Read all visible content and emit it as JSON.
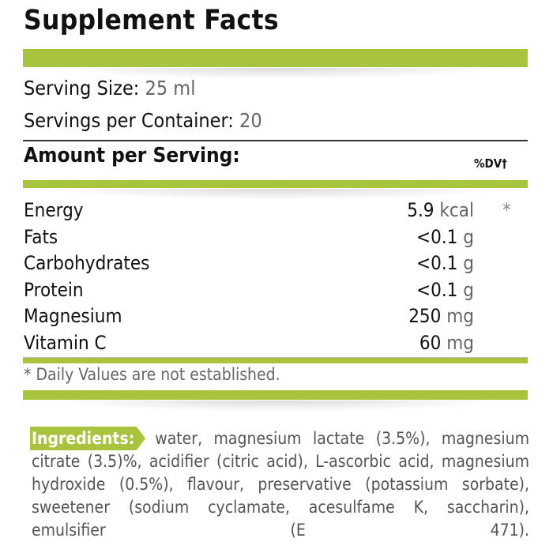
{
  "title": "Supplement Facts",
  "serving_size": {
    "label": "Serving Size:",
    "value": "25 ml"
  },
  "servings_per_container": {
    "label": "Servings per Container:",
    "value": "20"
  },
  "amount_header": "Amount per Serving:",
  "dv_header": "%DV†",
  "nutrients": [
    {
      "name": "Energy",
      "amount": "5.9",
      "unit": "kcal",
      "dv": "*"
    },
    {
      "name": "Fats",
      "amount": "<0.1",
      "unit": "g",
      "dv": ""
    },
    {
      "name": "Carbohydrates",
      "amount": "<0.1",
      "unit": "g",
      "dv": ""
    },
    {
      "name": "Protein",
      "amount": "<0.1",
      "unit": "g",
      "dv": ""
    },
    {
      "name": "Magnesium",
      "amount": "250",
      "unit": "mg",
      "dv": ""
    },
    {
      "name": "Vitamin C",
      "amount": "60",
      "unit": "mg",
      "dv": ""
    }
  ],
  "footnote": "* Daily Values are not established.",
  "ingredients": {
    "label": "Ingredients:",
    "text": "water, magnesium lactate (3.5%), magnesium citrate (3.5)%, acidifier (citric acid), L-ascorbic acid, magnesium hydroxide (0.5%), flavour, preservative (potassium sorbate), sweetener (sodium cyclamate, acesulfame K, saccharin), emulsifier (E 471)."
  },
  "colors": {
    "accent": "#a8c43e"
  }
}
